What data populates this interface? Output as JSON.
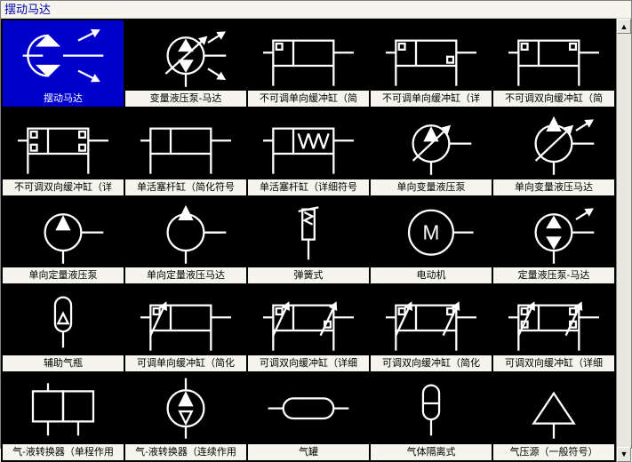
{
  "header": {
    "title": "摆动马达"
  },
  "palette": {
    "background": "#000000",
    "stroke": "#ffffff",
    "selected_bg": "#0000CC",
    "panel_bg": "#f5f5ed",
    "header_color": "#0000AA"
  },
  "grid": {
    "cols": 5,
    "rows": 5
  },
  "items": [
    {
      "label": "摆动马达",
      "selected": true,
      "glyph": "osc-motor"
    },
    {
      "label": "变量液压泵-马达",
      "glyph": "var-pump-motor"
    },
    {
      "label": "不可调单向缓冲缸（简",
      "glyph": "cyl-fixed-1a"
    },
    {
      "label": "不可调单向缓冲缸（详",
      "glyph": "cyl-fixed-1b"
    },
    {
      "label": "不可调双向缓冲缸（简",
      "glyph": "cyl-fixed-2a"
    },
    {
      "label": "不可调双向缓冲缸（详",
      "glyph": "cyl-fixed-2b"
    },
    {
      "label": "单活塞杆缸（简化符号",
      "glyph": "cyl-single-s"
    },
    {
      "label": "单活塞杆缸（详细符号",
      "glyph": "cyl-single-d"
    },
    {
      "label": "单向变量液压泵",
      "glyph": "pump-var-1"
    },
    {
      "label": "单向变量液压马达",
      "glyph": "motor-var-1"
    },
    {
      "label": "单向定量液压泵",
      "glyph": "pump-fix-1"
    },
    {
      "label": "单向定量液压马达",
      "glyph": "motor-fix-1"
    },
    {
      "label": "弹簧式",
      "glyph": "spring"
    },
    {
      "label": "电动机",
      "glyph": "elec-motor"
    },
    {
      "label": "定量液压泵-马达",
      "glyph": "pump-motor-fix"
    },
    {
      "label": "辅助气瓶",
      "glyph": "aux-bottle"
    },
    {
      "label": "可调单向缓冲缸（简化",
      "glyph": "cyl-adj-1a"
    },
    {
      "label": "可调双向缓冲缸（详细",
      "glyph": "cyl-adj-1b"
    },
    {
      "label": "可调双向缓冲缸（简化",
      "glyph": "cyl-adj-2a"
    },
    {
      "label": "可调双向缓冲缸（详细",
      "glyph": "cyl-adj-2b"
    },
    {
      "label": "气-液转换器（单程作用",
      "glyph": "gl-conv-1"
    },
    {
      "label": "气-液转换器（连续作用",
      "glyph": "gl-conv-2"
    },
    {
      "label": "气罐",
      "glyph": "tank"
    },
    {
      "label": "气体隔离式",
      "glyph": "gas-iso"
    },
    {
      "label": "气压源（一般符号）",
      "glyph": "air-src"
    }
  ],
  "scrollbar": {
    "up": "▲",
    "down": "▼"
  }
}
